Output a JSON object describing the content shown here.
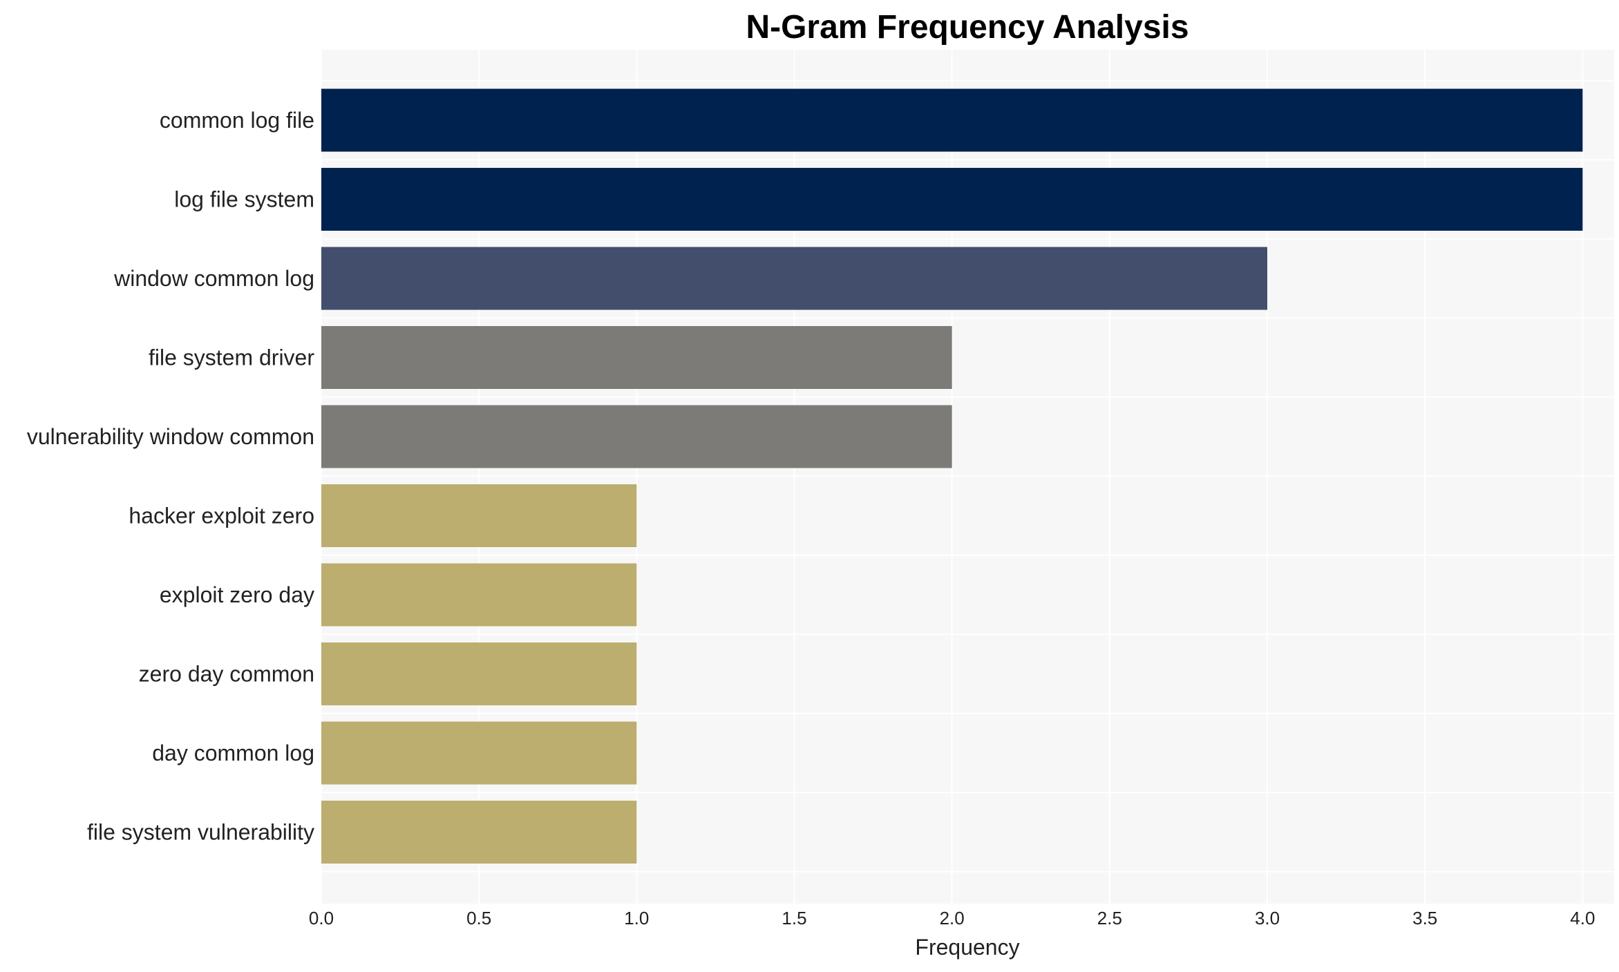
{
  "chart_data": {
    "type": "bar",
    "orientation": "horizontal",
    "title": "N-Gram Frequency Analysis",
    "xlabel": "Frequency",
    "ylabel": "",
    "xlim": [
      0,
      4.1
    ],
    "x_ticks": [
      "0.0",
      "0.5",
      "1.0",
      "1.5",
      "2.0",
      "2.5",
      "3.0",
      "3.5",
      "4.0"
    ],
    "grid": true,
    "legend": "none",
    "categories": [
      "common log file",
      "log file system",
      "window common log",
      "file system driver",
      "vulnerability window common",
      "hacker exploit zero",
      "exploit zero day",
      "zero day common",
      "day common log",
      "file system vulnerability"
    ],
    "values": [
      4,
      4,
      3,
      2,
      2,
      1,
      1,
      1,
      1,
      1
    ],
    "bar_colors": [
      "#00224e",
      "#00224e",
      "#434e6c",
      "#7c7b78",
      "#7c7b78",
      "#bcae6f",
      "#bcae6f",
      "#bcae6f",
      "#bcae6f",
      "#bcae6f"
    ],
    "plot_background": "#f7f7f7",
    "grid_color": "#ffffff"
  }
}
